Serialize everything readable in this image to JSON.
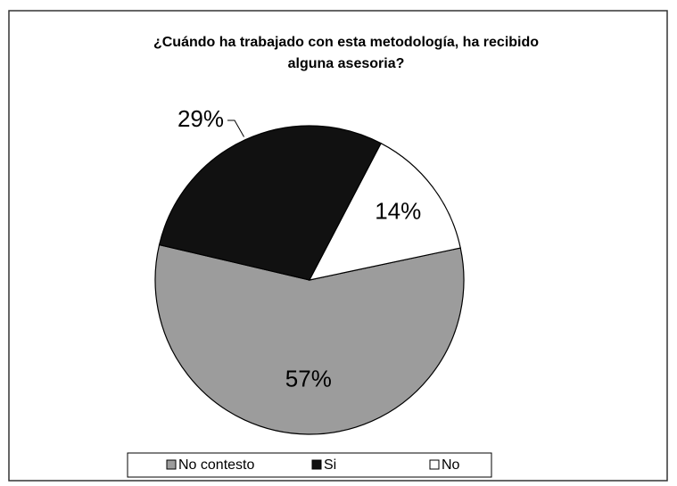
{
  "chart_data": {
    "type": "pie",
    "title": [
      "¿Cuándo ha trabajado con esta metodología, ha recibido",
      "alguna asesoria?"
    ],
    "categories": [
      "No contesto",
      "Si",
      "No"
    ],
    "values": [
      57,
      29,
      14
    ],
    "value_labels": [
      "57%",
      "29%",
      "14%"
    ],
    "colors": [
      "#9c9c9c",
      "#111111",
      "#ffffff"
    ],
    "legend": "bottom"
  }
}
